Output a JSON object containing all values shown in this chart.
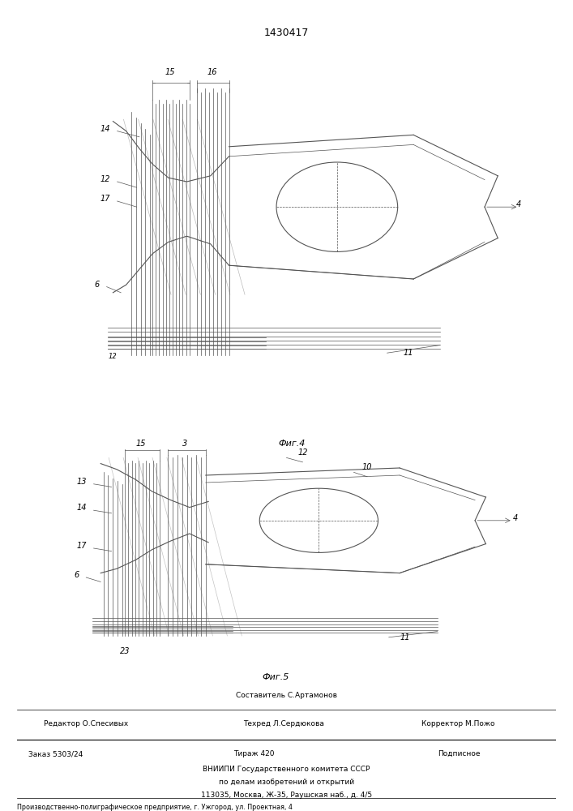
{
  "title": "1430417",
  "fig4_label": "Фиг.4",
  "fig5_label": "Фиг.5",
  "bg_color": "#ffffff",
  "line_color": "#555555",
  "footer_row1_center": "Составитель С.Артамонов",
  "footer_row2_left": "Редактор О.Спесивых",
  "footer_row2_center": "Техред Л.Сердюкова",
  "footer_row2_right": "Корректор М.Пожо",
  "footer_row3_left": "Заказ 5303/24",
  "footer_row3_center": "Тираж 420",
  "footer_row3_right": "Подписное",
  "footer_vnipi1": "ВНИИПИ Государственного комитета СССР",
  "footer_vnipi2": "по делам изобретений и открытий",
  "footer_vnipi3": "113035, Москва, Ж-35, Раушская наб., д. 4/5",
  "footer_bottom": "Производственно-полиграфическое предприятие, г. Ужгород, ул. Проектная, 4"
}
